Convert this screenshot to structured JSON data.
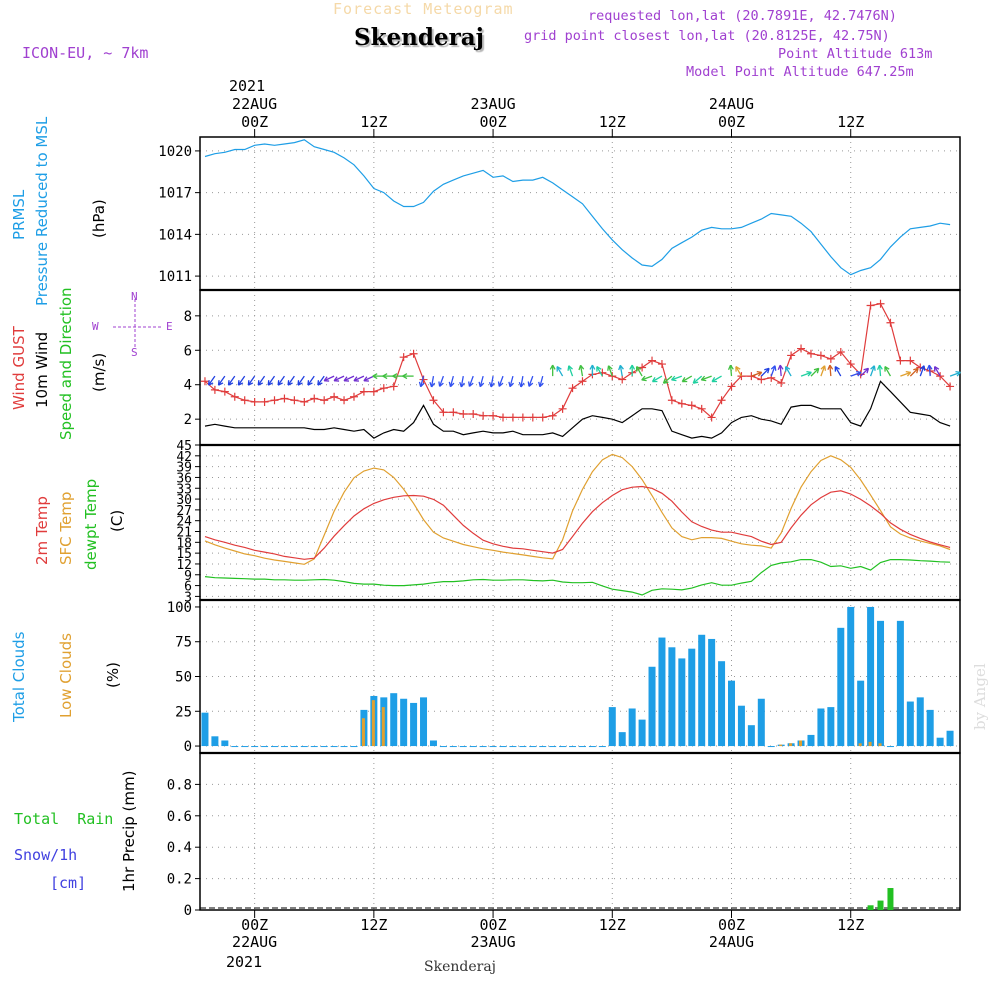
{
  "header": {
    "subtitle": "Forecast Meteogram",
    "title": "Skenderaj",
    "model": "ICON-EU, ~ 7km",
    "requested": "requested lon,lat (20.7891E, 42.7476N)",
    "gridpoint": "grid point closest lon,lat (20.8125E, 42.75N)",
    "point_alt": "Point Altitude 613m",
    "model_alt": "Model Point Altitude 647.25m",
    "credit": "by Angel",
    "footer": "Skenderaj",
    "year_top": "2021",
    "year_bottom": "2021"
  },
  "colors": {
    "pressure": "#1e9ee6",
    "gust": "#e03c3c",
    "wind": "#000000",
    "temp": "#e03c3c",
    "sfc": "#e0a030",
    "dewpt": "#22c022",
    "total_clouds": "#1e9ee6",
    "low_clouds": "#e0a030",
    "rain": "#22c022",
    "snow": "#4040e0",
    "purple": "#a040d0"
  },
  "panel_labels": {
    "pressure": [
      "PRMSL",
      "Pressure Reduced to MSL",
      "(hPa)"
    ],
    "wind": [
      "Wind GUST",
      "10m Wind",
      "Speed and Direction",
      "(m/s)"
    ],
    "compass": {
      "n": "N",
      "s": "S",
      "w": "W",
      "e": "E"
    },
    "temp": [
      "2m Temp",
      "SFC Temp",
      "dewpt Temp",
      "(C)"
    ],
    "clouds": [
      "Total Clouds",
      "Low Clouds",
      "(%)"
    ],
    "precip": [
      "1hr Precip (mm)"
    ],
    "precip_legend": [
      "Total  Rain",
      "Snow/1h",
      "[cm]"
    ]
  },
  "time_axis": {
    "top": [
      {
        "t": 0,
        "label": "22AUG",
        "sub": "00Z"
      },
      {
        "t": 12,
        "label": "",
        "sub": "12Z"
      },
      {
        "t": 24,
        "label": "23AUG",
        "sub": "00Z"
      },
      {
        "t": 36,
        "label": "",
        "sub": "12Z"
      },
      {
        "t": 48,
        "label": "24AUG",
        "sub": "00Z"
      },
      {
        "t": 60,
        "label": "",
        "sub": "12Z"
      }
    ],
    "bottom": [
      {
        "t": 0,
        "sub": "00Z",
        "label": "22AUG"
      },
      {
        "t": 12,
        "sub": "12Z",
        "label": ""
      },
      {
        "t": 24,
        "sub": "00Z",
        "label": "23AUG"
      },
      {
        "t": 36,
        "sub": "12Z",
        "label": ""
      },
      {
        "t": 48,
        "sub": "00Z",
        "label": "24AUG"
      },
      {
        "t": 60,
        "sub": "12Z",
        "label": ""
      }
    ]
  },
  "chart_data": [
    {
      "type": "line",
      "title": "PRMSL Pressure Reduced to MSL",
      "ylabel": "(hPa)",
      "ylim": [
        1010,
        1021
      ],
      "yticks": [
        1011,
        1014,
        1017,
        1020
      ],
      "x_hours": [
        -5,
        -4,
        -3,
        -2,
        -1,
        0,
        1,
        2,
        3,
        4,
        5,
        6,
        7,
        8,
        9,
        10,
        11,
        12,
        13,
        14,
        15,
        16,
        17,
        18,
        19,
        20,
        21,
        22,
        23,
        24,
        25,
        26,
        27,
        28,
        29,
        30,
        31,
        32,
        33,
        34,
        35,
        36,
        37,
        38,
        39,
        40,
        41,
        42,
        43,
        44,
        45,
        46,
        47,
        48,
        49,
        50,
        51,
        52,
        53,
        54,
        55,
        56,
        57,
        58,
        59,
        60,
        61,
        62,
        63,
        64,
        65,
        66,
        67,
        68,
        69,
        70
      ],
      "series": [
        {
          "name": "Pressure Reduced to MSL",
          "values": [
            1019.6,
            1019.8,
            1019.9,
            1020.1,
            1020.1,
            1020.4,
            1020.5,
            1020.4,
            1020.5,
            1020.6,
            1020.8,
            1020.3,
            1020.1,
            1019.9,
            1019.5,
            1019.0,
            1018.2,
            1017.3,
            1017.0,
            1016.4,
            1016.0,
            1016.0,
            1016.3,
            1017.1,
            1017.6,
            1017.9,
            1018.2,
            1018.4,
            1018.6,
            1018.1,
            1018.2,
            1017.8,
            1017.9,
            1017.9,
            1018.1,
            1017.7,
            1017.2,
            1016.7,
            1016.2,
            1015.3,
            1014.4,
            1013.6,
            1012.9,
            1012.3,
            1011.8,
            1011.7,
            1012.2,
            1013.0,
            1013.4,
            1013.8,
            1014.3,
            1014.5,
            1014.4,
            1014.4,
            1014.5,
            1014.8,
            1015.1,
            1015.5,
            1015.4,
            1015.3,
            1014.8,
            1014.2,
            1013.3,
            1012.4,
            1011.6,
            1011.1,
            1011.4,
            1011.6,
            1012.2,
            1013.1,
            1013.8,
            1014.4,
            1014.5,
            1014.6,
            1014.8,
            1014.7
          ]
        }
      ]
    },
    {
      "type": "line",
      "title": "Wind GUST / 10m Wind Speed and Direction",
      "ylabel": "(m/s)",
      "ylim": [
        0.5,
        9.5
      ],
      "yticks": [
        2,
        4,
        6,
        8
      ],
      "x_hours": [
        -5,
        -4,
        -3,
        -2,
        -1,
        0,
        1,
        2,
        3,
        4,
        5,
        6,
        7,
        8,
        9,
        10,
        11,
        12,
        13,
        14,
        15,
        16,
        17,
        18,
        19,
        20,
        21,
        22,
        23,
        24,
        25,
        26,
        27,
        28,
        29,
        30,
        31,
        32,
        33,
        34,
        35,
        36,
        37,
        38,
        39,
        40,
        41,
        42,
        43,
        44,
        45,
        46,
        47,
        48,
        49,
        50,
        51,
        52,
        53,
        54,
        55,
        56,
        57,
        58,
        59,
        60,
        61,
        62,
        63,
        64,
        65,
        66,
        67,
        68,
        69,
        70
      ],
      "series": [
        {
          "name": "Wind GUST",
          "values": [
            4.2,
            3.7,
            3.6,
            3.3,
            3.1,
            3.0,
            3.0,
            3.1,
            3.2,
            3.1,
            3.0,
            3.2,
            3.1,
            3.3,
            3.1,
            3.3,
            3.6,
            3.6,
            3.8,
            3.9,
            5.6,
            5.8,
            4.3,
            3.1,
            2.4,
            2.4,
            2.3,
            2.3,
            2.2,
            2.2,
            2.1,
            2.1,
            2.1,
            2.1,
            2.1,
            2.2,
            2.6,
            3.8,
            4.2,
            4.6,
            4.7,
            4.5,
            4.3,
            4.7,
            5.0,
            5.4,
            5.2,
            3.1,
            2.9,
            2.8,
            2.6,
            2.1,
            3.1,
            3.9,
            4.5,
            4.5,
            4.3,
            4.4,
            4.1,
            5.7,
            6.1,
            5.8,
            5.7,
            5.5,
            5.9,
            5.2,
            4.6,
            8.6,
            8.7,
            7.6,
            5.4,
            5.4,
            5.0,
            4.8,
            4.5,
            3.9
          ]
        },
        {
          "name": "10m Wind Speed",
          "values": [
            1.6,
            1.7,
            1.6,
            1.5,
            1.5,
            1.5,
            1.5,
            1.5,
            1.5,
            1.5,
            1.5,
            1.4,
            1.4,
            1.5,
            1.4,
            1.3,
            1.4,
            0.9,
            1.2,
            1.4,
            1.3,
            1.8,
            2.8,
            1.7,
            1.3,
            1.3,
            1.1,
            1.2,
            1.3,
            1.2,
            1.2,
            1.3,
            1.1,
            1.1,
            1.1,
            1.2,
            1.0,
            1.5,
            2.0,
            2.2,
            2.1,
            2.0,
            1.8,
            2.2,
            2.6,
            2.6,
            2.5,
            1.3,
            1.1,
            0.9,
            1.0,
            0.9,
            1.2,
            1.8,
            2.1,
            2.2,
            2.0,
            1.9,
            1.7,
            2.7,
            2.8,
            2.8,
            2.6,
            2.6,
            2.6,
            1.8,
            1.6,
            2.6,
            4.2,
            3.6,
            3.0,
            2.4,
            2.3,
            2.2,
            1.8,
            1.6
          ]
        }
      ],
      "wind_direction_arrows": {
        "count": 73,
        "description": "direction arrows (W <-> E, S <-> N) plotted at ~4.5 m/s"
      }
    },
    {
      "type": "line",
      "title": "2m Temp / SFC Temp / dewpt Temp",
      "ylabel": "(C)",
      "ylim": [
        2,
        45
      ],
      "yticks": [
        3,
        6,
        9,
        12,
        15,
        18,
        21,
        24,
        27,
        30,
        33,
        36,
        39,
        42,
        45
      ],
      "x_hours": [
        -5,
        -4,
        -3,
        -2,
        -1,
        0,
        1,
        2,
        3,
        4,
        5,
        6,
        7,
        8,
        9,
        10,
        11,
        12,
        13,
        14,
        15,
        16,
        17,
        18,
        19,
        20,
        21,
        22,
        23,
        24,
        25,
        26,
        27,
        28,
        29,
        30,
        31,
        32,
        33,
        34,
        35,
        36,
        37,
        38,
        39,
        40,
        41,
        42,
        43,
        44,
        45,
        46,
        47,
        48,
        49,
        50,
        51,
        52,
        53,
        54,
        55,
        56,
        57,
        58,
        59,
        60,
        61,
        62,
        63,
        64,
        65,
        66,
        67,
        68,
        69,
        70
      ],
      "series": [
        {
          "name": "2m Temp",
          "values": [
            19.6,
            18.7,
            18.0,
            17.2,
            16.6,
            15.8,
            15.3,
            14.8,
            14.1,
            13.7,
            13.3,
            13.6,
            16.4,
            19.7,
            22.6,
            25.3,
            27.3,
            28.8,
            29.8,
            30.5,
            30.9,
            31.0,
            30.8,
            29.9,
            28.3,
            25.5,
            22.7,
            20.5,
            18.6,
            17.6,
            16.9,
            16.4,
            16.2,
            15.8,
            15.4,
            15.0,
            16.0,
            19.6,
            23.3,
            26.5,
            29.0,
            31.0,
            32.6,
            33.3,
            33.5,
            33.0,
            31.6,
            29.4,
            26.4,
            23.7,
            22.4,
            21.4,
            20.8,
            20.8,
            20.2,
            19.6,
            18.3,
            17.4,
            18.0,
            22.0,
            25.5,
            28.4,
            30.4,
            31.9,
            32.3,
            31.4,
            29.9,
            28.1,
            26.0,
            23.4,
            21.6,
            20.2,
            19.1,
            18.1,
            17.3,
            16.6
          ]
        },
        {
          "name": "SFC Temp",
          "values": [
            18.4,
            17.3,
            16.4,
            15.6,
            14.8,
            14.3,
            13.6,
            13.1,
            12.7,
            12.3,
            11.9,
            13.4,
            20.0,
            26.6,
            31.9,
            35.9,
            37.8,
            38.6,
            38.1,
            36.0,
            32.7,
            28.8,
            24.3,
            20.8,
            19.2,
            18.3,
            17.4,
            16.8,
            16.2,
            15.8,
            15.3,
            14.9,
            14.5,
            14.1,
            13.7,
            13.4,
            18.7,
            26.7,
            32.7,
            37.6,
            40.9,
            42.4,
            41.5,
            39.0,
            35.4,
            31.0,
            26.3,
            22.0,
            19.6,
            18.7,
            19.3,
            19.3,
            19.1,
            18.3,
            17.6,
            17.2,
            17.0,
            16.4,
            20.6,
            27.4,
            33.3,
            37.6,
            40.7,
            42.0,
            40.9,
            38.8,
            35.3,
            31.1,
            26.8,
            22.3,
            20.3,
            19.2,
            18.4,
            17.7,
            17.0,
            16.0
          ]
        },
        {
          "name": "dewpt Temp",
          "values": [
            8.5,
            8.2,
            8.1,
            8.0,
            7.9,
            7.8,
            7.8,
            7.6,
            7.6,
            7.5,
            7.5,
            7.6,
            7.7,
            7.5,
            7.1,
            6.6,
            6.4,
            6.4,
            6.1,
            6.0,
            6.0,
            6.2,
            6.4,
            6.8,
            7.1,
            7.1,
            7.3,
            7.6,
            7.7,
            7.5,
            7.5,
            7.6,
            7.6,
            7.4,
            7.3,
            7.5,
            7.0,
            6.8,
            6.8,
            6.9,
            5.9,
            5.0,
            4.6,
            4.2,
            3.4,
            4.7,
            5.1,
            5.0,
            4.8,
            5.3,
            6.2,
            6.8,
            6.1,
            6.1,
            6.7,
            7.2,
            9.6,
            11.6,
            12.3,
            12.6,
            13.2,
            13.2,
            12.5,
            11.3,
            11.5,
            10.8,
            11.3,
            10.3,
            12.4,
            13.2,
            13.2,
            13.1,
            12.9,
            12.8,
            12.6,
            12.5
          ]
        }
      ]
    },
    {
      "type": "bar",
      "title": "Total Clouds / Low Clouds",
      "ylabel": "(%)",
      "ylim": [
        -5,
        105
      ],
      "yticks": [
        0,
        25,
        50,
        75,
        100
      ],
      "x_hours": [
        -5,
        -4,
        -3,
        -2,
        -1,
        0,
        1,
        2,
        3,
        4,
        5,
        6,
        7,
        8,
        9,
        10,
        11,
        12,
        13,
        14,
        15,
        16,
        17,
        18,
        19,
        20,
        21,
        22,
        23,
        24,
        25,
        26,
        27,
        28,
        29,
        30,
        31,
        32,
        33,
        34,
        35,
        36,
        37,
        38,
        39,
        40,
        41,
        42,
        43,
        44,
        45,
        46,
        47,
        48,
        49,
        50,
        51,
        52,
        53,
        54,
        55,
        56,
        57,
        58,
        59,
        60,
        61,
        62,
        63,
        64,
        65,
        66,
        67,
        68,
        69,
        70
      ],
      "series": [
        {
          "name": "Total Clouds",
          "values": [
            24,
            7,
            4,
            0,
            0,
            0,
            0,
            0,
            0,
            0,
            0,
            0,
            0,
            0,
            0,
            0,
            26,
            36,
            35,
            38,
            34,
            31,
            35,
            4,
            0,
            0,
            0,
            0,
            0,
            0,
            0,
            0,
            0,
            0,
            0,
            0,
            0,
            0,
            0,
            0,
            0,
            28,
            10,
            27,
            19,
            57,
            78,
            71,
            63,
            70,
            80,
            77,
            61,
            47,
            29,
            15,
            34,
            0,
            1,
            2,
            4,
            8,
            27,
            28,
            85,
            100,
            47,
            100,
            90,
            0,
            90,
            32,
            35,
            26,
            6,
            11
          ]
        },
        {
          "name": "Low Clouds",
          "values": [
            0,
            0,
            0,
            0,
            0,
            0,
            0,
            0,
            0,
            0,
            0,
            0,
            0,
            0,
            0,
            0,
            20,
            33,
            28,
            0,
            0,
            0,
            0,
            0,
            0,
            0,
            0,
            0,
            0,
            0,
            0,
            0,
            0,
            0,
            0,
            0,
            0,
            0,
            0,
            0,
            0,
            0,
            0,
            0,
            0,
            0,
            0,
            0,
            0,
            0,
            0,
            0,
            0,
            0,
            0,
            0,
            0,
            0,
            1,
            2,
            4,
            0,
            0,
            0,
            0,
            0,
            2,
            3,
            2,
            0,
            0,
            0,
            0,
            0,
            0,
            0
          ]
        }
      ]
    },
    {
      "type": "bar",
      "title": "1hr Precip (mm) Total Rain / Snow",
      "ylabel": "1hr Precip (mm)",
      "ylim": [
        0,
        1.0
      ],
      "yticks": [
        0,
        0.2,
        0.4,
        0.6,
        0.8
      ],
      "ytick_labels": [
        "0",
        "0.2",
        "0.4",
        "0.6",
        "0.8"
      ],
      "series": [
        {
          "name": "Total Rain",
          "x_hours": [
            62,
            63,
            64
          ],
          "values": [
            0.03,
            0.06,
            0.14
          ]
        }
      ]
    }
  ]
}
